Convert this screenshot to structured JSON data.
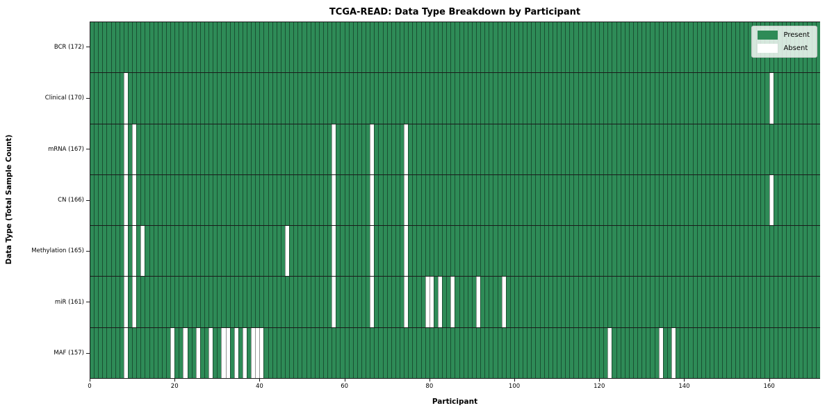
{
  "chart_data": {
    "type": "heatmap",
    "title": "TCGA-READ: Data Type Breakdown by Participant",
    "xlabel": "Participant",
    "ylabel": "Data Type (Total Sample Count)",
    "n_participants": 172,
    "x_ticks": [
      0,
      20,
      40,
      60,
      80,
      100,
      120,
      140,
      160
    ],
    "x_range": [
      0,
      172
    ],
    "grid": "cell-borders",
    "legend_position": "upper right",
    "legend": [
      {
        "label": "Present",
        "color": "#2e8b57"
      },
      {
        "label": "Absent",
        "color": "#ffffff"
      }
    ],
    "colors": {
      "present": "#2e8b57",
      "absent": "#ffffff",
      "cell_border": "rgba(0,0,0,0.42)",
      "row_border": "#1a1a1a"
    },
    "rows": [
      {
        "label": "BCR (172)",
        "total": 172,
        "absent_participants": []
      },
      {
        "label": "Clinical (170)",
        "total": 170,
        "absent_participants": [
          8,
          160
        ]
      },
      {
        "label": "mRNA (167)",
        "total": 167,
        "absent_participants": [
          8,
          10,
          57,
          66,
          74
        ]
      },
      {
        "label": "CN (166)",
        "total": 166,
        "absent_participants": [
          8,
          10,
          57,
          66,
          74,
          160
        ]
      },
      {
        "label": "Methylation (165)",
        "total": 165,
        "absent_participants": [
          8,
          10,
          12,
          46,
          57,
          66,
          74
        ]
      },
      {
        "label": "miR (161)",
        "total": 161,
        "absent_participants": [
          8,
          10,
          57,
          66,
          74,
          79,
          80,
          82,
          85,
          91,
          97
        ]
      },
      {
        "label": "MAF (157)",
        "total": 157,
        "absent_participants": [
          8,
          19,
          22,
          25,
          28,
          31,
          32,
          34,
          36,
          38,
          39,
          40,
          122,
          134,
          137
        ]
      }
    ]
  }
}
